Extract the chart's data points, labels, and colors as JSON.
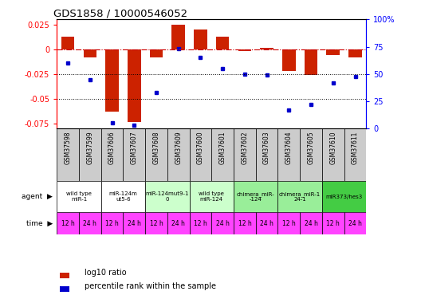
{
  "title": "GDS1858 / 10000546052",
  "samples": [
    "GSM37598",
    "GSM37599",
    "GSM37606",
    "GSM37607",
    "GSM37608",
    "GSM37609",
    "GSM37600",
    "GSM37601",
    "GSM37602",
    "GSM37603",
    "GSM37604",
    "GSM37605",
    "GSM37610",
    "GSM37611"
  ],
  "log10_ratio": [
    0.013,
    -0.008,
    -0.063,
    -0.073,
    -0.008,
    0.025,
    0.02,
    0.013,
    -0.002,
    0.001,
    -0.022,
    -0.026,
    -0.006,
    -0.008
  ],
  "percentile_rank": [
    60,
    45,
    5,
    3,
    33,
    73,
    65,
    55,
    50,
    49,
    17,
    22,
    42,
    48
  ],
  "agent_groups": [
    {
      "label": "wild type\nmiR-1",
      "start": 0,
      "end": 2,
      "color": "#ffffff"
    },
    {
      "label": "miR-124m\nut5-6",
      "start": 2,
      "end": 4,
      "color": "#ffffff"
    },
    {
      "label": "miR-124mut9-1\n0",
      "start": 4,
      "end": 6,
      "color": "#ccffcc"
    },
    {
      "label": "wild type\nmiR-124",
      "start": 6,
      "end": 8,
      "color": "#ccffcc"
    },
    {
      "label": "chimera_miR-\n-124",
      "start": 8,
      "end": 10,
      "color": "#99ee99"
    },
    {
      "label": "chimera_miR-1\n24-1",
      "start": 10,
      "end": 12,
      "color": "#99ee99"
    },
    {
      "label": "miR373/hes3",
      "start": 12,
      "end": 14,
      "color": "#44cc44"
    }
  ],
  "time_labels": [
    "12 h",
    "24 h",
    "12 h",
    "24 h",
    "12 h",
    "24 h",
    "12 h",
    "24 h",
    "12 h",
    "24 h",
    "12 h",
    "24 h",
    "12 h",
    "24 h"
  ],
  "time_color": "#ff44ff",
  "bar_color": "#cc2200",
  "dot_color": "#0000cc",
  "zero_line_color": "#cc0000",
  "ylim_left": [
    -0.08,
    0.03
  ],
  "ylim_right": [
    0,
    100
  ],
  "yticks_left": [
    -0.075,
    -0.05,
    -0.025,
    0,
    0.025
  ],
  "yticks_right": [
    0,
    25,
    50,
    75,
    100
  ],
  "ytick_labels_right": [
    "0",
    "25",
    "50",
    "75",
    "100%"
  ],
  "sample_bg_color": "#cccccc"
}
